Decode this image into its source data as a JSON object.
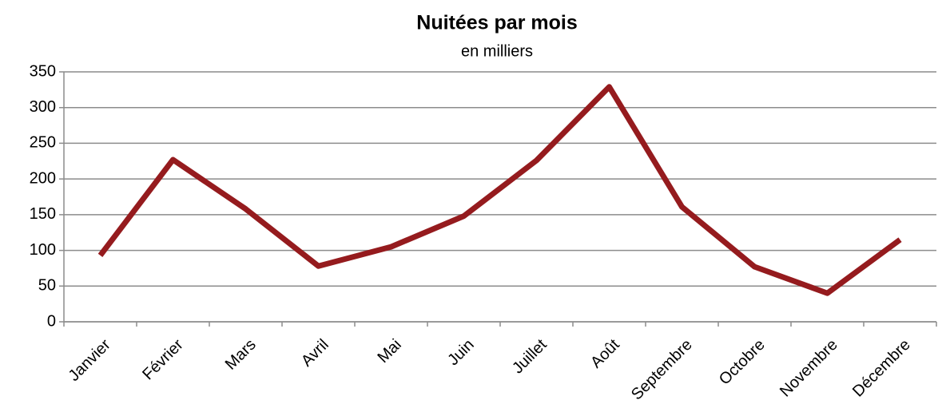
{
  "chart_data": {
    "type": "line",
    "title": "Nuitées par mois",
    "subtitle": "en milliers",
    "categories": [
      "Janvier",
      "Février",
      "Mars",
      "Avril",
      "Mai",
      "Juin",
      "Juillet",
      "Août",
      "Septembre",
      "Octobre",
      "Novembre",
      "Décembre"
    ],
    "series": [
      {
        "name": "Nuitées",
        "color": "#951b1e",
        "values": [
          93,
          227,
          158,
          78,
          105,
          148,
          226,
          329,
          161,
          77,
          40,
          115
        ]
      }
    ],
    "ylim": [
      0,
      350
    ],
    "yticks": [
      0,
      50,
      100,
      150,
      200,
      250,
      300,
      350
    ],
    "grid": true
  }
}
